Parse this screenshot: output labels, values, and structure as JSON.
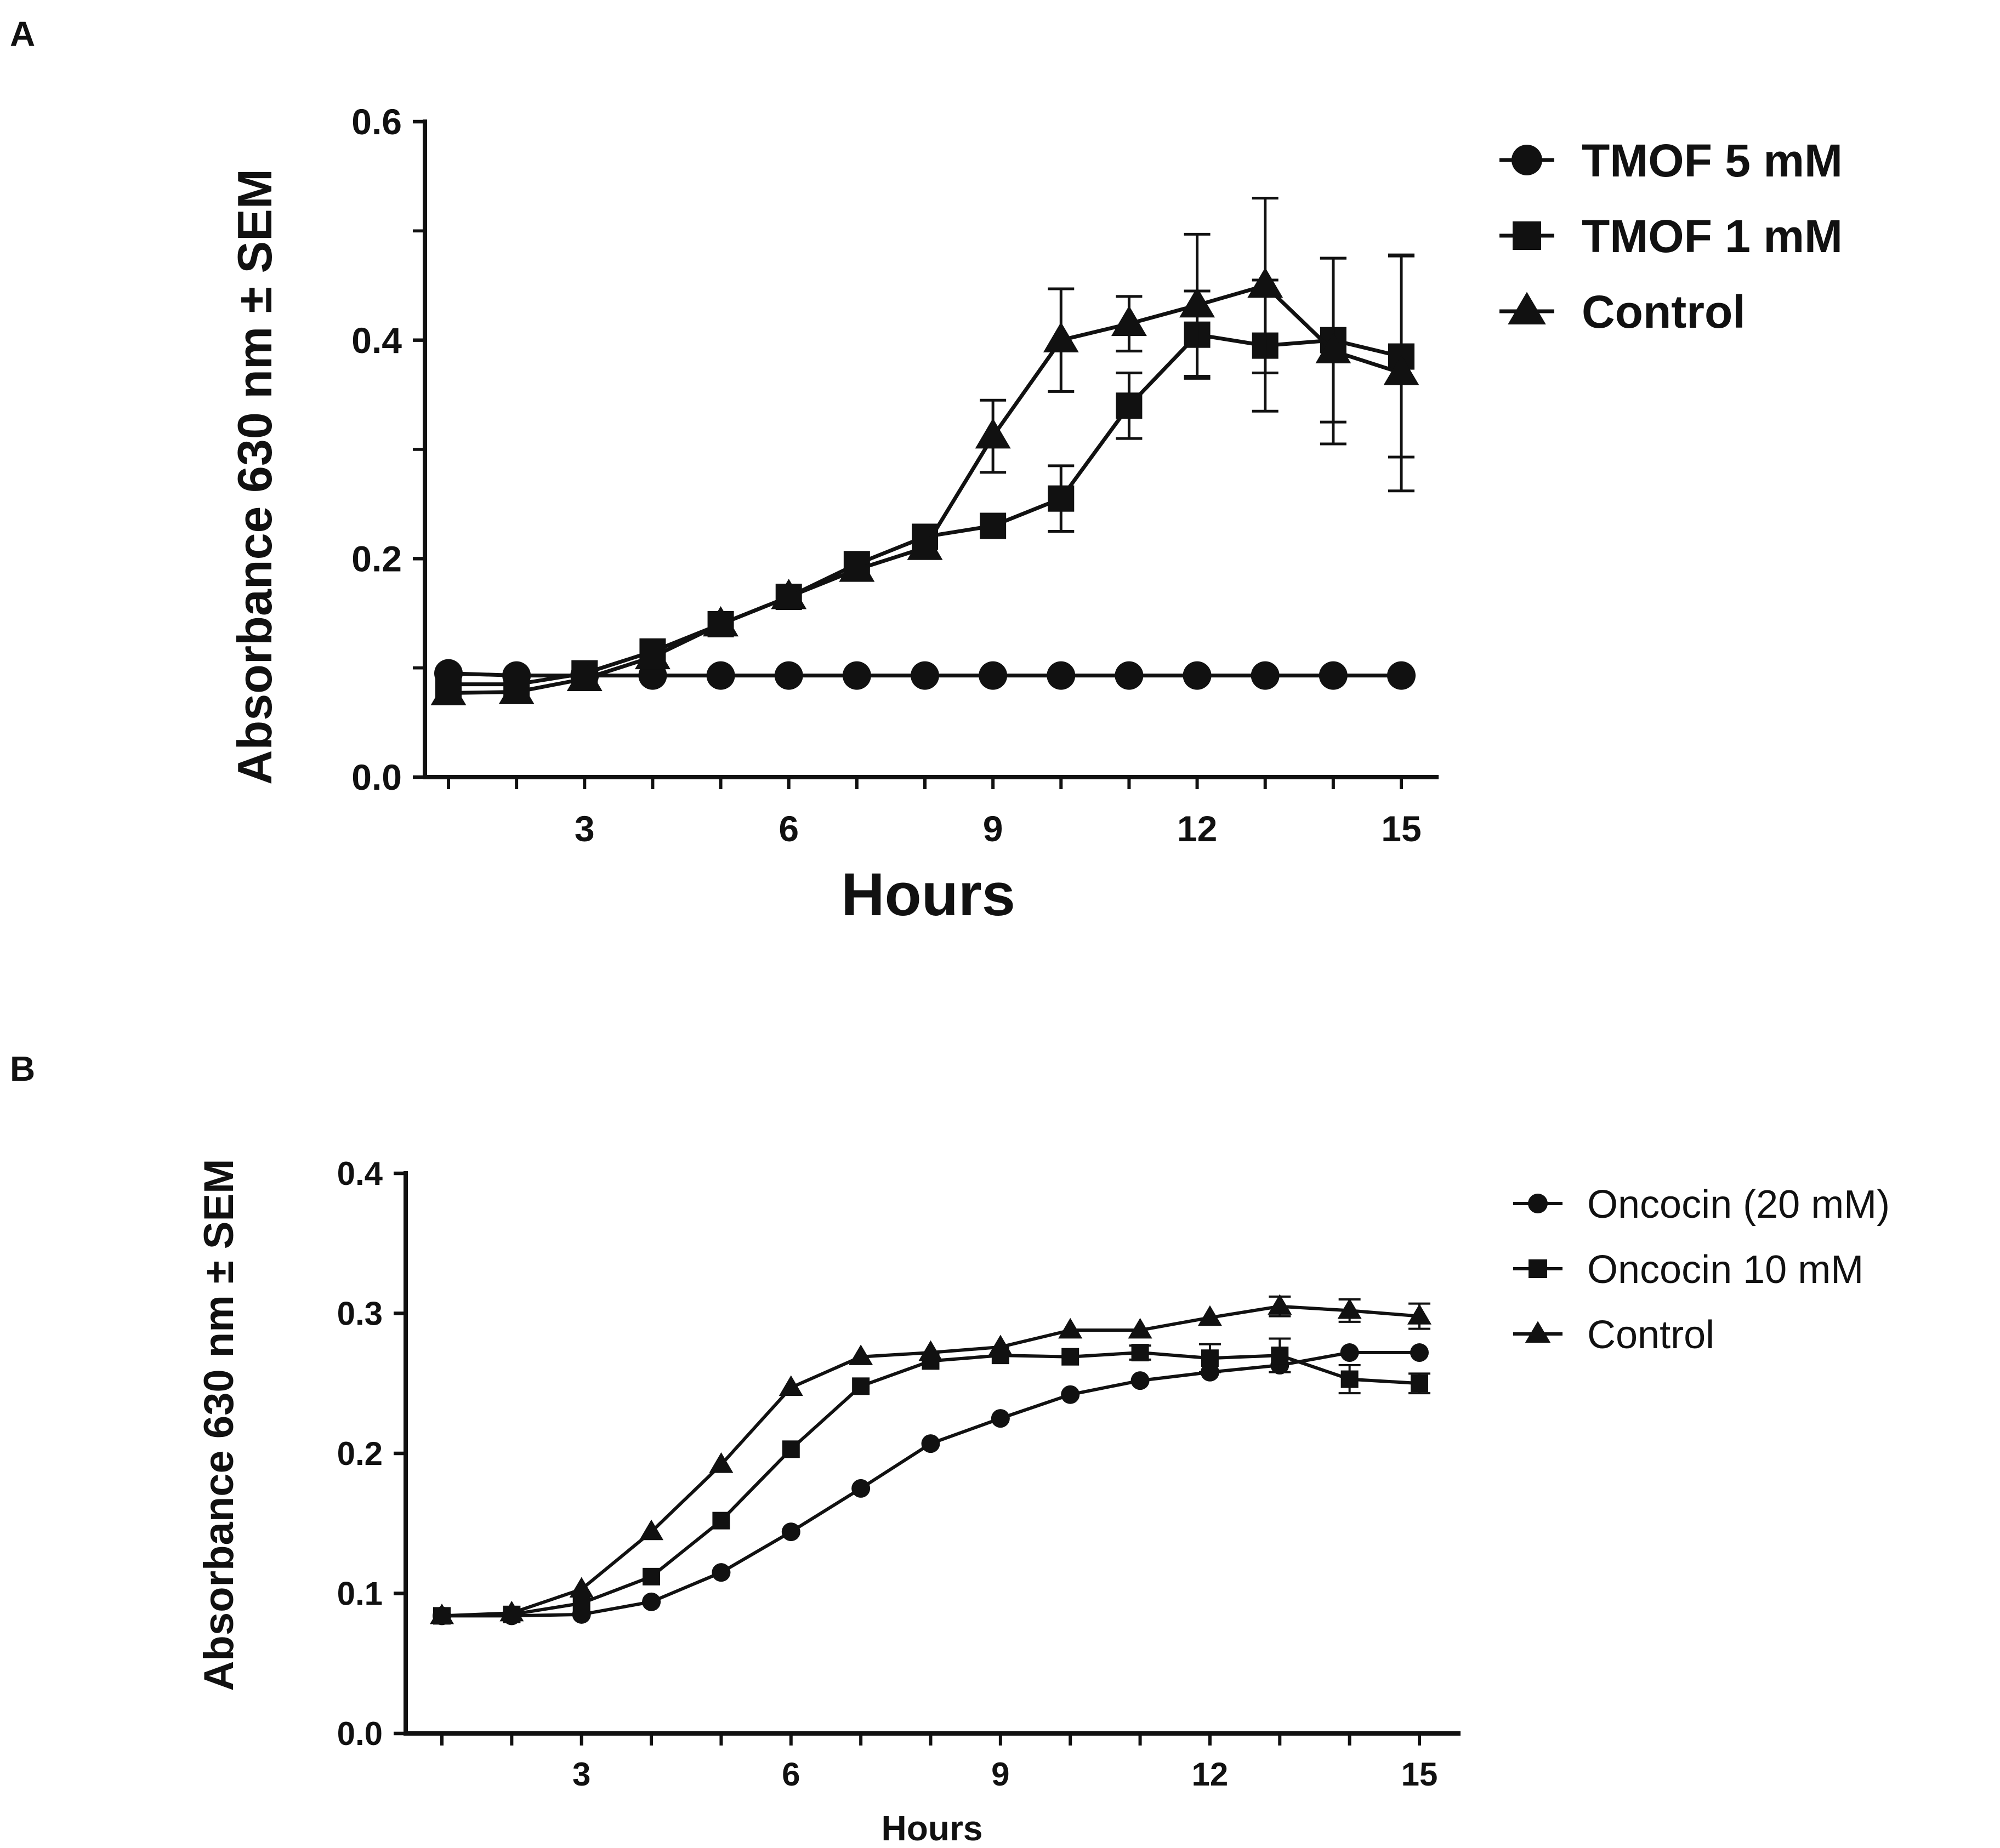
{
  "chart_data": [
    {
      "panel": "A",
      "type": "line",
      "title": "",
      "xlabel": "Hours",
      "ylabel": "Absorbance 630 nm  ± SEM",
      "xlim": [
        0.5,
        15.5
      ],
      "ylim": [
        0,
        0.6
      ],
      "xticks": [
        3,
        6,
        9,
        12,
        15
      ],
      "xtick_labels": [
        "3",
        "6",
        "9",
        "12",
        "15"
      ],
      "yticks": [
        0,
        0.2,
        0.4,
        0.6
      ],
      "ytick_labels": [
        "0.0",
        "0.2",
        "0.4",
        "0.6"
      ],
      "legend_position": "top-right, outside plot",
      "series": [
        {
          "name": "TMOF 5 mM",
          "marker": "circle",
          "x": [
            1,
            2,
            3,
            4,
            5,
            6,
            7,
            8,
            9,
            10,
            11,
            12,
            13,
            14,
            15
          ],
          "values": [
            0.095,
            0.093,
            0.093,
            0.093,
            0.093,
            0.093,
            0.093,
            0.093,
            0.093,
            0.093,
            0.093,
            0.093,
            0.093,
            0.093,
            0.093
          ],
          "errors": [
            0,
            0,
            0,
            0,
            0,
            0,
            0,
            0,
            0,
            0,
            0,
            0,
            0,
            0,
            0
          ]
        },
        {
          "name": "TMOF 1 mM",
          "marker": "square",
          "x": [
            1,
            2,
            3,
            4,
            5,
            6,
            7,
            8,
            9,
            10,
            11,
            12,
            13,
            14,
            15
          ],
          "values": [
            0.085,
            0.085,
            0.095,
            0.115,
            0.14,
            0.165,
            0.195,
            0.22,
            0.23,
            0.255,
            0.34,
            0.405,
            0.395,
            0.4,
            0.385
          ],
          "errors": [
            0,
            0,
            0,
            0,
            0,
            0,
            0,
            0,
            0,
            0.03,
            0.03,
            0.04,
            0.06,
            0.075,
            0.092
          ]
        },
        {
          "name": "Control",
          "marker": "triangle",
          "x": [
            1,
            2,
            3,
            4,
            5,
            6,
            7,
            8,
            9,
            10,
            11,
            12,
            13,
            14,
            15
          ],
          "values": [
            0.077,
            0.078,
            0.09,
            0.11,
            0.14,
            0.165,
            0.19,
            0.21,
            0.312,
            0.4,
            0.415,
            0.432,
            0.45,
            0.39,
            0.37
          ],
          "errors": [
            0,
            0,
            0,
            0,
            0,
            0,
            0,
            0,
            0.033,
            0.047,
            0.025,
            0.065,
            0.08,
            0.085,
            0.108
          ]
        }
      ]
    },
    {
      "panel": "B",
      "type": "line",
      "title": "",
      "xlabel": "Hours",
      "ylabel": "Absorbance 630 nm ± SEM",
      "xlim": [
        0.5,
        15.5
      ],
      "ylim": [
        0,
        0.4
      ],
      "xticks": [
        3,
        6,
        9,
        12,
        15
      ],
      "xtick_labels": [
        "3",
        "6",
        "9",
        "12",
        "15"
      ],
      "yticks": [
        0,
        0.1,
        0.2,
        0.3,
        0.4
      ],
      "ytick_labels": [
        "0.0",
        "0.1",
        "0.2",
        "0.3",
        "0.4"
      ],
      "legend_position": "top-right, outside plot",
      "series": [
        {
          "name": "Oncocin (20 mM)",
          "marker": "circle",
          "x": [
            1,
            2,
            3,
            4,
            5,
            6,
            7,
            8,
            9,
            10,
            11,
            12,
            13,
            14,
            15
          ],
          "values": [
            0.084,
            0.084,
            0.085,
            0.094,
            0.115,
            0.144,
            0.175,
            0.207,
            0.225,
            0.242,
            0.252,
            0.258,
            0.263,
            0.272,
            0.272
          ],
          "errors": [
            0,
            0,
            0,
            0,
            0,
            0,
            0,
            0,
            0,
            0,
            0,
            0,
            0,
            0,
            0
          ]
        },
        {
          "name": "Oncocin 10 mM",
          "marker": "square",
          "x": [
            1,
            2,
            3,
            4,
            5,
            6,
            7,
            8,
            9,
            10,
            11,
            12,
            13,
            14,
            15
          ],
          "values": [
            0.084,
            0.085,
            0.093,
            0.112,
            0.152,
            0.203,
            0.248,
            0.266,
            0.27,
            0.269,
            0.272,
            0.268,
            0.27,
            0.253,
            0.25
          ],
          "errors": [
            0,
            0,
            0,
            0,
            0,
            0,
            0,
            0,
            0,
            0,
            0.005,
            0.01,
            0.012,
            0.01,
            0.007
          ]
        },
        {
          "name": "Control",
          "marker": "triangle",
          "x": [
            1,
            2,
            3,
            4,
            5,
            6,
            7,
            8,
            9,
            10,
            11,
            12,
            13,
            14,
            15
          ],
          "values": [
            0.084,
            0.086,
            0.103,
            0.144,
            0.192,
            0.247,
            0.269,
            0.272,
            0.276,
            0.288,
            0.288,
            0.297,
            0.305,
            0.302,
            0.298
          ],
          "errors": [
            0,
            0,
            0,
            0,
            0,
            0,
            0,
            0,
            0,
            0,
            0,
            0,
            0.007,
            0.008,
            0.009
          ]
        }
      ]
    }
  ],
  "panels": {
    "a_letter": "A",
    "b_letter": "B"
  },
  "colors": {
    "ink": "#111111",
    "background": "#ffffff"
  }
}
